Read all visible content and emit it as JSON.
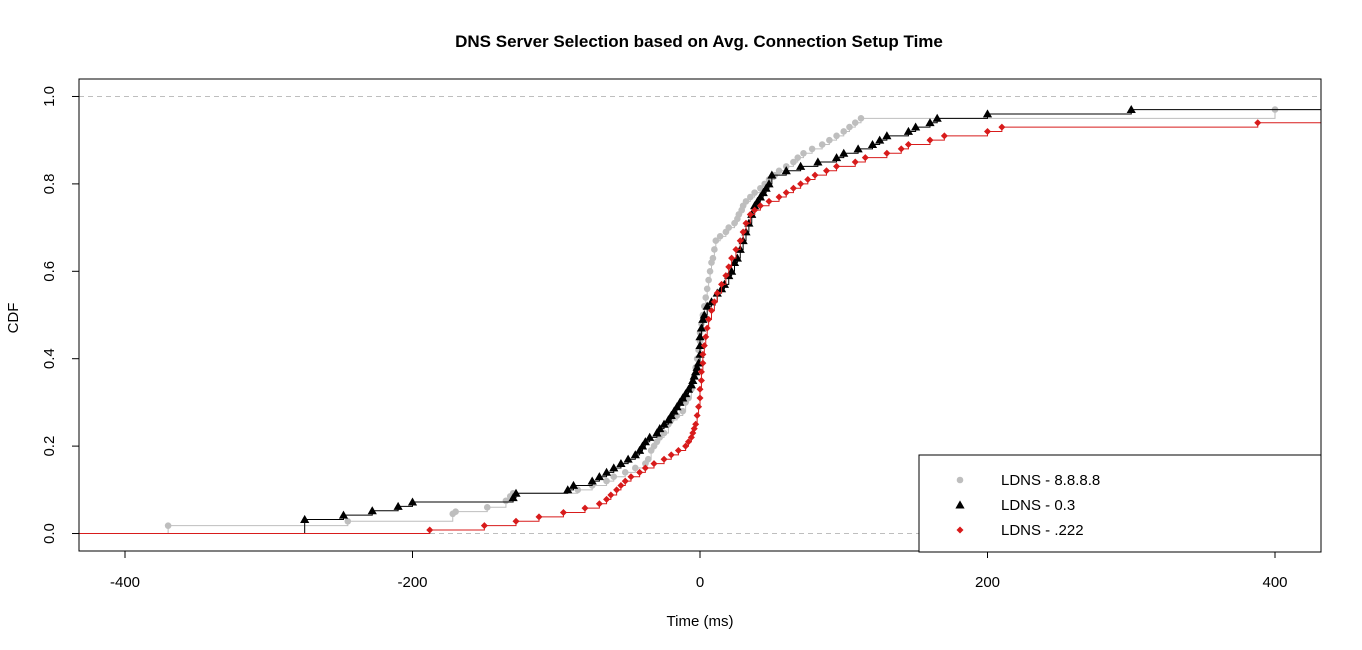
{
  "chart_data": {
    "type": "line",
    "subtype": "step-ecdf",
    "title": "DNS Server Selection based on Avg. Connection Setup Time",
    "xlabel": "Time (ms)",
    "ylabel": "CDF",
    "xlim": [
      -432,
      432
    ],
    "ylim": [
      -0.04,
      1.04
    ],
    "x_ticks": [
      -400,
      -200,
      0,
      200,
      400
    ],
    "x_tick_labels": [
      "-400",
      "-200",
      "0",
      "200",
      "400"
    ],
    "y_ticks": [
      0.0,
      0.2,
      0.4,
      0.6,
      0.8,
      1.0
    ],
    "y_tick_labels": [
      "0.0",
      "0.2",
      "0.4",
      "0.6",
      "0.8",
      "1.0"
    ],
    "reference_lines": [
      0,
      1
    ],
    "grid": false,
    "legend_position": "bottom-right",
    "series": [
      {
        "name": "LDNS - 8.8.8.8",
        "color": "#bebebe",
        "marker": "circle",
        "points": [
          [
            -370,
            0.018
          ],
          [
            -245,
            0.028
          ],
          [
            -172,
            0.045
          ],
          [
            -170,
            0.05
          ],
          [
            -148,
            0.06
          ],
          [
            -135,
            0.075
          ],
          [
            -132,
            0.085
          ],
          [
            -130,
            0.092
          ],
          [
            -85,
            0.1
          ],
          [
            -75,
            0.11
          ],
          [
            -65,
            0.12
          ],
          [
            -60,
            0.13
          ],
          [
            -52,
            0.14
          ],
          [
            -45,
            0.15
          ],
          [
            -38,
            0.16
          ],
          [
            -36,
            0.17
          ],
          [
            -34,
            0.19
          ],
          [
            -32,
            0.2
          ],
          [
            -30,
            0.21
          ],
          [
            -28,
            0.22
          ],
          [
            -25,
            0.23
          ],
          [
            -22,
            0.25
          ],
          [
            -20,
            0.26
          ],
          [
            -16,
            0.27
          ],
          [
            -12,
            0.28
          ],
          [
            -10,
            0.3
          ],
          [
            -8,
            0.31
          ],
          [
            -6,
            0.33
          ],
          [
            -4,
            0.36
          ],
          [
            -3,
            0.38
          ],
          [
            -2,
            0.4
          ],
          [
            -1,
            0.42
          ],
          [
            0,
            0.44
          ],
          [
            0,
            0.46
          ],
          [
            1,
            0.48
          ],
          [
            2,
            0.5
          ],
          [
            3,
            0.52
          ],
          [
            4,
            0.54
          ],
          [
            5,
            0.56
          ],
          [
            6,
            0.58
          ],
          [
            7,
            0.6
          ],
          [
            8,
            0.62
          ],
          [
            9,
            0.63
          ],
          [
            10,
            0.65
          ],
          [
            11,
            0.67
          ],
          [
            14,
            0.68
          ],
          [
            18,
            0.69
          ],
          [
            20,
            0.7
          ],
          [
            24,
            0.71
          ],
          [
            26,
            0.72
          ],
          [
            27,
            0.73
          ],
          [
            29,
            0.74
          ],
          [
            30,
            0.75
          ],
          [
            32,
            0.76
          ],
          [
            35,
            0.77
          ],
          [
            38,
            0.78
          ],
          [
            42,
            0.79
          ],
          [
            45,
            0.8
          ],
          [
            48,
            0.81
          ],
          [
            52,
            0.82
          ],
          [
            55,
            0.83
          ],
          [
            60,
            0.84
          ],
          [
            65,
            0.85
          ],
          [
            68,
            0.86
          ],
          [
            72,
            0.87
          ],
          [
            78,
            0.88
          ],
          [
            85,
            0.89
          ],
          [
            90,
            0.9
          ],
          [
            95,
            0.91
          ],
          [
            100,
            0.92
          ],
          [
            104,
            0.93
          ],
          [
            108,
            0.94
          ],
          [
            112,
            0.95
          ],
          [
            400,
            0.97
          ]
        ]
      },
      {
        "name": "LDNS - 0.3",
        "color": "#000000",
        "marker": "triangle",
        "points": [
          [
            -275,
            0.032
          ],
          [
            -248,
            0.042
          ],
          [
            -228,
            0.052
          ],
          [
            -210,
            0.062
          ],
          [
            -200,
            0.072
          ],
          [
            -130,
            0.082
          ],
          [
            -128,
            0.092
          ],
          [
            -92,
            0.1
          ],
          [
            -88,
            0.11
          ],
          [
            -75,
            0.12
          ],
          [
            -70,
            0.13
          ],
          [
            -65,
            0.14
          ],
          [
            -60,
            0.15
          ],
          [
            -55,
            0.16
          ],
          [
            -50,
            0.17
          ],
          [
            -45,
            0.18
          ],
          [
            -42,
            0.19
          ],
          [
            -40,
            0.2
          ],
          [
            -38,
            0.21
          ],
          [
            -35,
            0.22
          ],
          [
            -30,
            0.23
          ],
          [
            -28,
            0.24
          ],
          [
            -25,
            0.25
          ],
          [
            -22,
            0.26
          ],
          [
            -20,
            0.27
          ],
          [
            -18,
            0.28
          ],
          [
            -16,
            0.29
          ],
          [
            -14,
            0.3
          ],
          [
            -12,
            0.31
          ],
          [
            -10,
            0.32
          ],
          [
            -8,
            0.33
          ],
          [
            -6,
            0.34
          ],
          [
            -5,
            0.35
          ],
          [
            -4,
            0.36
          ],
          [
            -3,
            0.37
          ],
          [
            -2,
            0.38
          ],
          [
            -1,
            0.39
          ],
          [
            0,
            0.41
          ],
          [
            0,
            0.43
          ],
          [
            0,
            0.45
          ],
          [
            1,
            0.47
          ],
          [
            2,
            0.49
          ],
          [
            3,
            0.5
          ],
          [
            5,
            0.52
          ],
          [
            8,
            0.53
          ],
          [
            12,
            0.55
          ],
          [
            15,
            0.56
          ],
          [
            17,
            0.57
          ],
          [
            20,
            0.59
          ],
          [
            22,
            0.6
          ],
          [
            24,
            0.62
          ],
          [
            26,
            0.63
          ],
          [
            28,
            0.65
          ],
          [
            30,
            0.67
          ],
          [
            32,
            0.69
          ],
          [
            34,
            0.71
          ],
          [
            36,
            0.73
          ],
          [
            38,
            0.75
          ],
          [
            40,
            0.76
          ],
          [
            42,
            0.77
          ],
          [
            44,
            0.78
          ],
          [
            46,
            0.79
          ],
          [
            48,
            0.8
          ],
          [
            50,
            0.82
          ],
          [
            60,
            0.83
          ],
          [
            70,
            0.84
          ],
          [
            82,
            0.85
          ],
          [
            95,
            0.86
          ],
          [
            100,
            0.87
          ],
          [
            110,
            0.88
          ],
          [
            120,
            0.89
          ],
          [
            125,
            0.9
          ],
          [
            130,
            0.91
          ],
          [
            145,
            0.92
          ],
          [
            150,
            0.93
          ],
          [
            160,
            0.94
          ],
          [
            165,
            0.95
          ],
          [
            200,
            0.96
          ],
          [
            300,
            0.97
          ]
        ]
      },
      {
        "name": "LDNS - .222",
        "color": "#d81b1b",
        "marker": "diamond",
        "points": [
          [
            -188,
            0.008
          ],
          [
            -150,
            0.018
          ],
          [
            -128,
            0.028
          ],
          [
            -112,
            0.038
          ],
          [
            -95,
            0.048
          ],
          [
            -80,
            0.058
          ],
          [
            -70,
            0.068
          ],
          [
            -65,
            0.078
          ],
          [
            -62,
            0.088
          ],
          [
            -58,
            0.1
          ],
          [
            -55,
            0.11
          ],
          [
            -52,
            0.12
          ],
          [
            -48,
            0.13
          ],
          [
            -42,
            0.14
          ],
          [
            -38,
            0.15
          ],
          [
            -32,
            0.16
          ],
          [
            -25,
            0.17
          ],
          [
            -20,
            0.18
          ],
          [
            -15,
            0.19
          ],
          [
            -10,
            0.2
          ],
          [
            -8,
            0.21
          ],
          [
            -6,
            0.22
          ],
          [
            -5,
            0.23
          ],
          [
            -4,
            0.24
          ],
          [
            -3,
            0.25
          ],
          [
            -2,
            0.27
          ],
          [
            -1,
            0.29
          ],
          [
            0,
            0.31
          ],
          [
            0,
            0.33
          ],
          [
            1,
            0.35
          ],
          [
            1,
            0.37
          ],
          [
            2,
            0.39
          ],
          [
            2,
            0.41
          ],
          [
            3,
            0.43
          ],
          [
            4,
            0.45
          ],
          [
            5,
            0.47
          ],
          [
            6,
            0.49
          ],
          [
            8,
            0.51
          ],
          [
            10,
            0.53
          ],
          [
            12,
            0.55
          ],
          [
            15,
            0.57
          ],
          [
            18,
            0.59
          ],
          [
            20,
            0.61
          ],
          [
            22,
            0.63
          ],
          [
            25,
            0.65
          ],
          [
            28,
            0.67
          ],
          [
            30,
            0.69
          ],
          [
            32,
            0.71
          ],
          [
            35,
            0.73
          ],
          [
            38,
            0.74
          ],
          [
            42,
            0.75
          ],
          [
            48,
            0.76
          ],
          [
            55,
            0.77
          ],
          [
            60,
            0.78
          ],
          [
            65,
            0.79
          ],
          [
            70,
            0.8
          ],
          [
            75,
            0.81
          ],
          [
            80,
            0.82
          ],
          [
            88,
            0.83
          ],
          [
            95,
            0.84
          ],
          [
            108,
            0.85
          ],
          [
            115,
            0.86
          ],
          [
            130,
            0.87
          ],
          [
            140,
            0.88
          ],
          [
            145,
            0.89
          ],
          [
            160,
            0.9
          ],
          [
            170,
            0.91
          ],
          [
            200,
            0.92
          ],
          [
            210,
            0.93
          ],
          [
            388,
            0.94
          ]
        ]
      }
    ]
  }
}
